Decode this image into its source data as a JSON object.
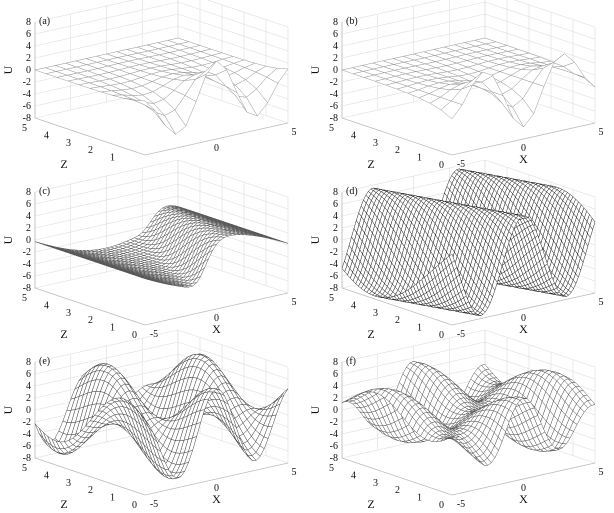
{
  "chart_data": [
    {
      "type": "surface",
      "panel_label": "(a)",
      "xlabel": "",
      "ylabel": "Z",
      "zlabel": "U",
      "x_ticks": [
        "0",
        "5"
      ],
      "z_ticks": [
        "5",
        "4",
        "3",
        "2",
        "1"
      ],
      "u_ticks": [
        "8",
        "6",
        "4",
        "2",
        "0",
        "-2",
        "-4",
        "-6",
        "-8"
      ],
      "xlim": [
        -5,
        5
      ],
      "zlim": [
        0,
        5
      ],
      "ulim": [
        -8,
        8
      ]
    },
    {
      "type": "surface",
      "panel_label": "(b)",
      "xlabel": "X",
      "ylabel": "Z",
      "zlabel": "U",
      "x_ticks": [
        "-5",
        "0",
        "5"
      ],
      "z_ticks": [
        "5",
        "4",
        "3",
        "2",
        "1",
        "0"
      ],
      "u_ticks": [
        "8",
        "6",
        "4",
        "2",
        "0",
        "-2",
        "-4",
        "-6",
        "-8"
      ],
      "xlim": [
        -5,
        5
      ],
      "zlim": [
        0,
        5
      ],
      "ulim": [
        -8,
        8
      ]
    },
    {
      "type": "surface",
      "panel_label": "(c)",
      "xlabel": "X",
      "ylabel": "Z",
      "zlabel": "U",
      "x_ticks": [
        "-5",
        "0",
        "5"
      ],
      "z_ticks": [
        "5",
        "4",
        "3",
        "2",
        "1",
        "0"
      ],
      "u_ticks": [
        "8",
        "6",
        "4",
        "2",
        "0",
        "-2",
        "-4",
        "-6",
        "-8"
      ],
      "xlim": [
        -5,
        5
      ],
      "zlim": [
        0,
        5
      ],
      "ulim": [
        -8,
        8
      ]
    },
    {
      "type": "surface",
      "panel_label": "(d)",
      "xlabel": "X",
      "ylabel": "Z",
      "zlabel": "U",
      "x_ticks": [
        "-5",
        "0",
        "5"
      ],
      "z_ticks": [
        "5",
        "4",
        "3",
        "2",
        "1",
        "0"
      ],
      "u_ticks": [
        "8",
        "6",
        "4",
        "2",
        "0",
        "-2",
        "-4",
        "-6",
        "-8"
      ],
      "xlim": [
        -5,
        5
      ],
      "zlim": [
        0,
        5
      ],
      "ulim": [
        -8,
        8
      ]
    },
    {
      "type": "surface",
      "panel_label": "(e)",
      "xlabel": "X",
      "ylabel": "Z",
      "zlabel": "U",
      "x_ticks": [
        "-5",
        "0",
        "5"
      ],
      "z_ticks": [
        "5",
        "4",
        "3",
        "2",
        "1",
        "0"
      ],
      "u_ticks": [
        "8",
        "6",
        "4",
        "2",
        "0",
        "-2",
        "-4",
        "-6",
        "-8"
      ],
      "xlim": [
        -5,
        5
      ],
      "zlim": [
        0,
        5
      ],
      "ulim": [
        -8,
        8
      ]
    },
    {
      "type": "surface",
      "panel_label": "(f)",
      "xlabel": "X",
      "ylabel": "Z",
      "zlabel": "U",
      "x_ticks": [
        "-5",
        "0",
        "5"
      ],
      "z_ticks": [
        "5",
        "4",
        "3",
        "2",
        "1",
        "0"
      ],
      "u_ticks": [
        "8",
        "6",
        "4",
        "2",
        "0",
        "-2",
        "-4",
        "-6",
        "-8"
      ],
      "xlim": [
        -5,
        5
      ],
      "zlim": [
        0,
        5
      ],
      "ulim": [
        -8,
        8
      ]
    }
  ]
}
